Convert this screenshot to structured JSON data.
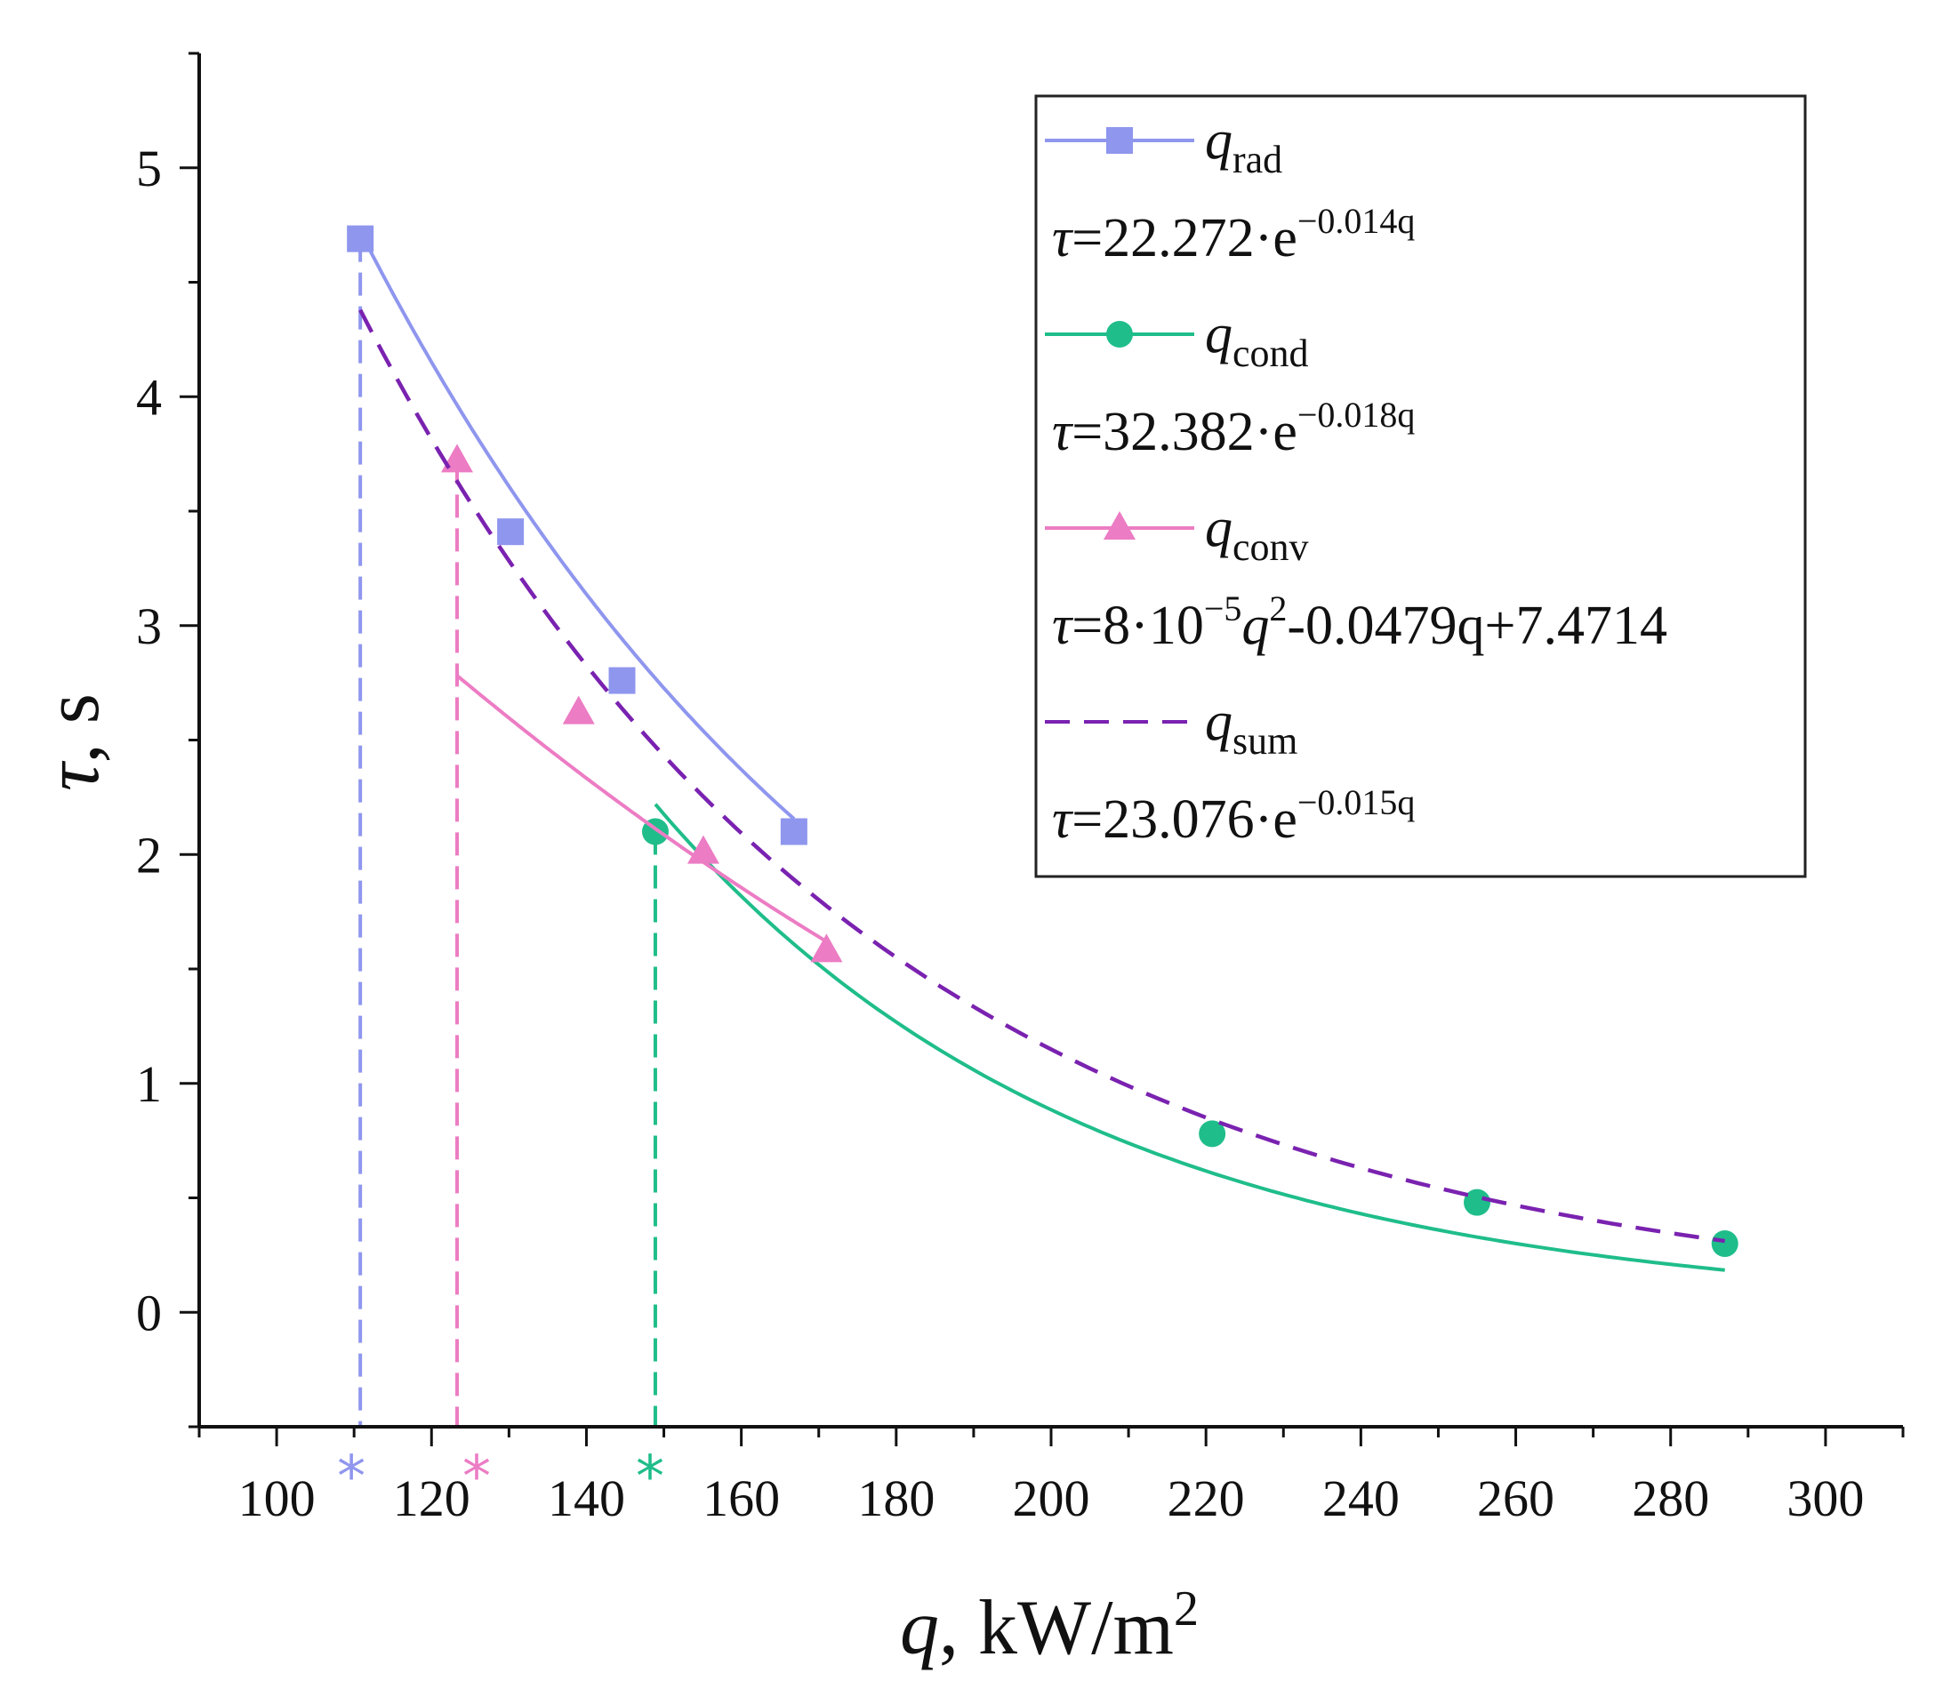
{
  "chart_data": {
    "type": "line",
    "title": "",
    "xlabel": {
      "var": "q",
      "unit_base": ", kW/m",
      "unit_sup": "2"
    },
    "ylabel": {
      "var": "τ",
      "unit": ", s"
    },
    "xlim": [
      90,
      310
    ],
    "ylim": [
      -0.5,
      5.5
    ],
    "x_ticks": [
      100,
      120,
      140,
      160,
      180,
      200,
      220,
      240,
      260,
      280,
      300
    ],
    "y_ticks": [
      0,
      1,
      2,
      3,
      4,
      5
    ],
    "grid": false,
    "legend_position": "top-right",
    "series": [
      {
        "name": "rad",
        "label_var": "q",
        "label_sub": "rad",
        "color": "#8f96ee",
        "marker": "square",
        "x": [
          110.8,
          130.2,
          144.6,
          166.8
        ],
        "y": [
          4.69,
          3.41,
          2.76,
          2.1
        ],
        "fit": {
          "kind": "exp",
          "a": 22.272,
          "b": -0.014,
          "x_range": [
            110.8,
            166.8
          ]
        },
        "eq": {
          "prefix": "τ=22.272·e",
          "sup": "−0.014q"
        }
      },
      {
        "name": "cond",
        "label_var": "q",
        "label_sub": "cond",
        "color": "#1fbd8a",
        "marker": "circle",
        "x": [
          148.9,
          220.8,
          255.0,
          287.0
        ],
        "y": [
          2.1,
          0.78,
          0.48,
          0.3
        ],
        "fit": {
          "kind": "exp",
          "a": 32.382,
          "b": -0.018,
          "x_range": [
            148.9,
            287.0
          ]
        },
        "eq": {
          "prefix": "τ=32.382·e",
          "sup": "−0.018q"
        }
      },
      {
        "name": "conv",
        "label_var": "q",
        "label_sub": "conv",
        "color": "#ec7cc4",
        "marker": "triangle",
        "x": [
          123.3,
          139.0,
          155.1,
          171.0
        ],
        "y": [
          3.72,
          2.62,
          2.01,
          1.58
        ],
        "fit": {
          "kind": "poly2",
          "a": 8e-05,
          "b": -0.0479,
          "c": 7.4714,
          "x_range": [
            123.3,
            171.0
          ]
        },
        "eq": {
          "p1": "τ=8·10",
          "s1": "−5",
          "p2": "q",
          "s2": "2",
          "p3": "-0.0479q+7.4714"
        }
      },
      {
        "name": "sum",
        "label_var": "q",
        "label_sub": "sum",
        "color": "#7a22b0",
        "marker": "none",
        "dashed": true,
        "x": [],
        "y": [],
        "fit": {
          "kind": "exp",
          "a": 23.076,
          "b": -0.015,
          "x_range": [
            110.8,
            287.0
          ]
        },
        "eq": {
          "prefix": "τ=23.076·e",
          "sup": "−0.015q"
        }
      }
    ],
    "threshold_markers": [
      {
        "x": 110.8,
        "y_top": 4.69,
        "color": "#8f96ee",
        "symbol": "*"
      },
      {
        "x": 123.3,
        "y_top": 3.72,
        "color": "#ec7cc4",
        "symbol": "*"
      },
      {
        "x": 148.9,
        "y_top": 2.1,
        "color": "#1fbd8a",
        "symbol": "*"
      }
    ]
  }
}
